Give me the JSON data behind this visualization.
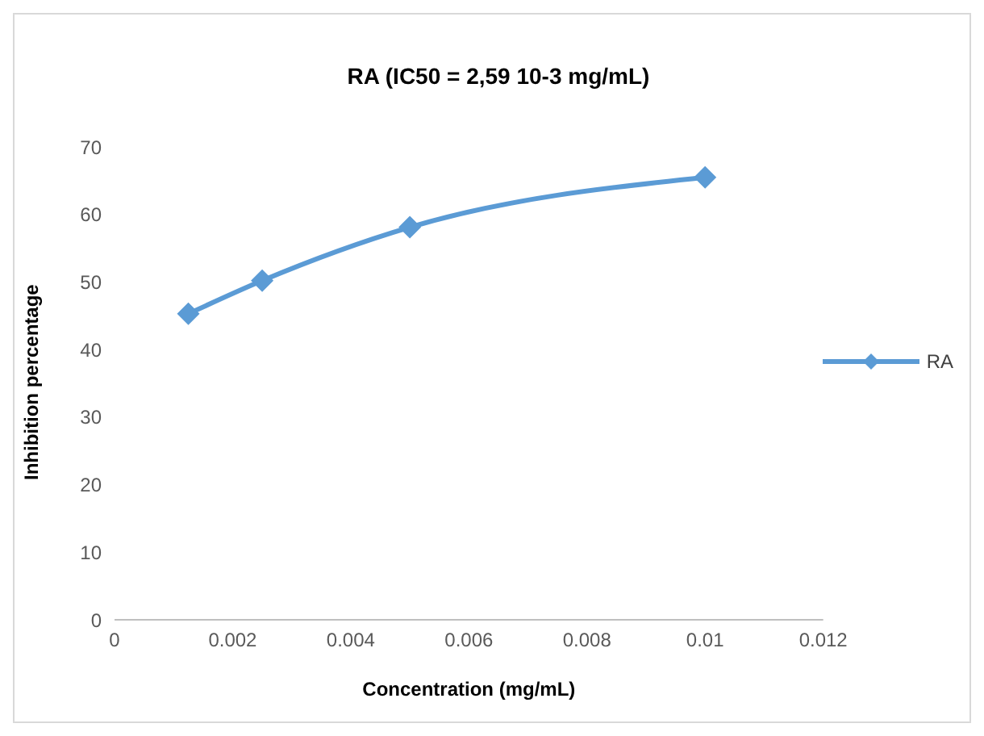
{
  "chart_data": {
    "type": "line",
    "title": "RA (IC50 = 2,59 10-3 mg/mL)",
    "xlabel": "Concentration (mg/mL)",
    "ylabel": "Inhibition percentage",
    "x": [
      0.00125,
      0.0025,
      0.005,
      0.01
    ],
    "series": [
      {
        "name": "RA",
        "color": "#5b9bd5",
        "values": [
          45.3,
          50.2,
          58.1,
          65.5
        ]
      }
    ],
    "xlim": [
      0,
      0.012
    ],
    "xticks": [
      0,
      0.002,
      0.004,
      0.006,
      0.008,
      0.01,
      0.012
    ],
    "ylim": [
      0,
      70
    ],
    "yticks": [
      0,
      10,
      20,
      30,
      40,
      50,
      60,
      70
    ],
    "grid": false,
    "legend": "right",
    "marker": "diamond",
    "line_style": "solid"
  }
}
